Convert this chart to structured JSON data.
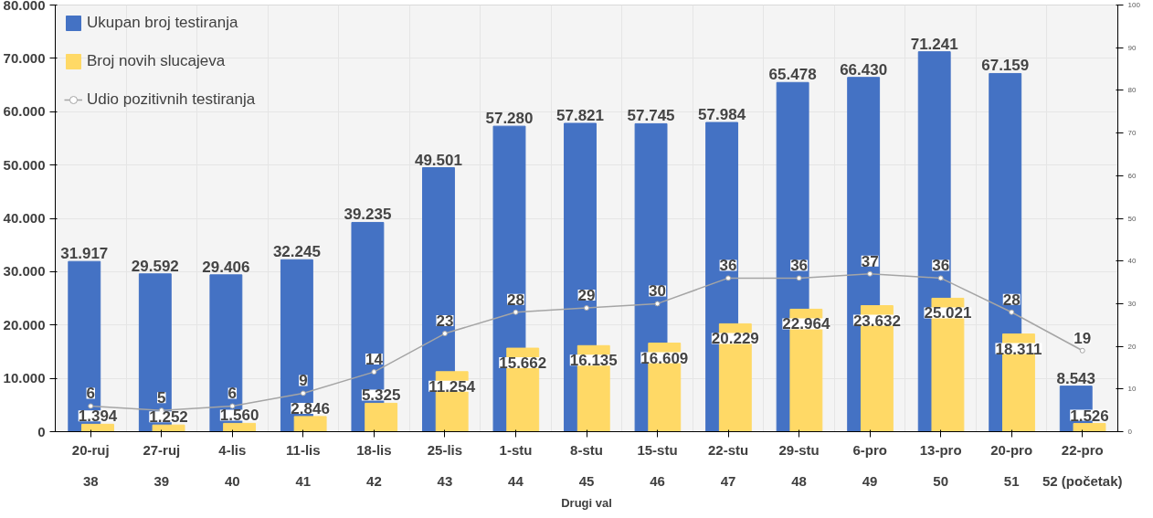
{
  "chart_data": {
    "type": "bar",
    "xlabel": "Drugi val",
    "categories": [
      "20-ruj\n38",
      "27-ruj\n39",
      "4-lis\n40",
      "11-lis\n41",
      "18-lis\n42",
      "25-lis\n43",
      "1-stu\n44",
      "8-stu\n45",
      "15-stu\n46",
      "22-stu\n47",
      "29-stu\n48",
      "6-pro\n49",
      "13-pro\n50",
      "20-pro\n51",
      "22-pro\n52 (početak)"
    ],
    "series": [
      {
        "name": "Ukupan broj testiranja",
        "color": "#4472c4",
        "values": [
          31917,
          29592,
          29406,
          32245,
          39235,
          49501,
          57280,
          57821,
          57745,
          57984,
          65478,
          66430,
          71241,
          67159,
          8543
        ],
        "value_labels": [
          "31.917",
          "29.592",
          "29.406",
          "32.245",
          "39.235",
          "49.501",
          "57.280",
          "57.821",
          "57.745",
          "57.984",
          "65.478",
          "66.430",
          "71.241",
          "67.159",
          "8.543"
        ]
      },
      {
        "name": "Broj novih slucajeva",
        "color": "#ffd966",
        "values": [
          1394,
          1252,
          1560,
          2846,
          5325,
          11254,
          15662,
          16135,
          16609,
          20229,
          22964,
          23632,
          25021,
          18311,
          1526
        ],
        "value_labels": [
          "1.394",
          "1.252",
          "1.560",
          "2.846",
          "5.325",
          "11.254",
          "15.662",
          "16.135",
          "16.609",
          "20.229",
          "22.964",
          "23.632",
          "25.021",
          "18.311",
          "1.526"
        ]
      },
      {
        "name": "Udio pozitivnih testiranja",
        "type": "line",
        "axis": "y2",
        "color": "#a5a5a5",
        "marker": "circle",
        "values": [
          6,
          5,
          6,
          9,
          14,
          23,
          28,
          29,
          30,
          36,
          36,
          37,
          36,
          28,
          19
        ],
        "data_labels": true
      }
    ],
    "ylim": [
      0,
      80000
    ],
    "yticks": [
      {
        "value": 0,
        "label": "0"
      },
      {
        "value": 10000,
        "label": "10.000"
      },
      {
        "value": 20000,
        "label": "20.000"
      },
      {
        "value": 30000,
        "label": "30.000"
      },
      {
        "value": 40000,
        "label": "40.000"
      },
      {
        "value": 50000,
        "label": "50.000"
      },
      {
        "value": 60000,
        "label": "60.000"
      },
      {
        "value": 70000,
        "label": "70.000"
      },
      {
        "value": 80000,
        "label": "80.000"
      }
    ],
    "y2lim": [
      0,
      100
    ],
    "y2ticks": [
      0,
      10,
      20,
      30,
      40,
      50,
      60,
      70,
      80,
      90,
      100
    ],
    "grid": true,
    "legend": "top left"
  }
}
